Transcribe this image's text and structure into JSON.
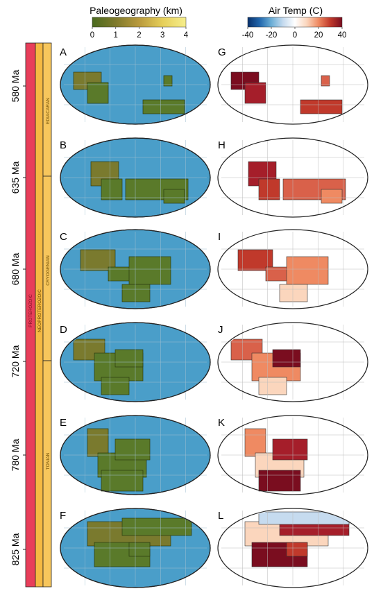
{
  "colorbars": {
    "paleo": {
      "title": "Paleogeography (km)",
      "ticks": [
        "0",
        "1",
        "2",
        "3",
        "4"
      ],
      "colors": [
        "#4a6a1e",
        "#7f7a2c",
        "#b99a3d",
        "#e6cf5a",
        "#f6ee8c"
      ]
    },
    "temp": {
      "title": "Air Temp (C)",
      "ticks": [
        "-40",
        "-20",
        "0",
        "20",
        "40"
      ],
      "colors": [
        "#08306b",
        "#2166ac",
        "#6baed6",
        "#c6dbef",
        "#ffffff",
        "#fbd6bd",
        "#ef8a62",
        "#c0392b",
        "#7a0d1f"
      ]
    }
  },
  "timescale": {
    "ages": [
      "580 Ma",
      "635 Ma",
      "680 Ma",
      "720 Ma",
      "780 Ma",
      "825 Ma"
    ],
    "eon": "PROTEROZOIC",
    "era": "NEOPROTEROZOIC",
    "periods": [
      "EDIACARAN",
      "CRYOGENIAN",
      "TONIAN"
    ],
    "colors": {
      "eon": "#e83e5a",
      "era": "#f5b942",
      "period": "#f7c65c"
    }
  },
  "panels": {
    "left": [
      "A",
      "B",
      "C",
      "D",
      "E",
      "F"
    ],
    "right": [
      "G",
      "H",
      "I",
      "J",
      "K",
      "L"
    ]
  },
  "colors": {
    "ocean": "#4a9ec9",
    "land": "#5a7a2a",
    "grid": "#9fbfd0",
    "map_outline": "#222222"
  }
}
